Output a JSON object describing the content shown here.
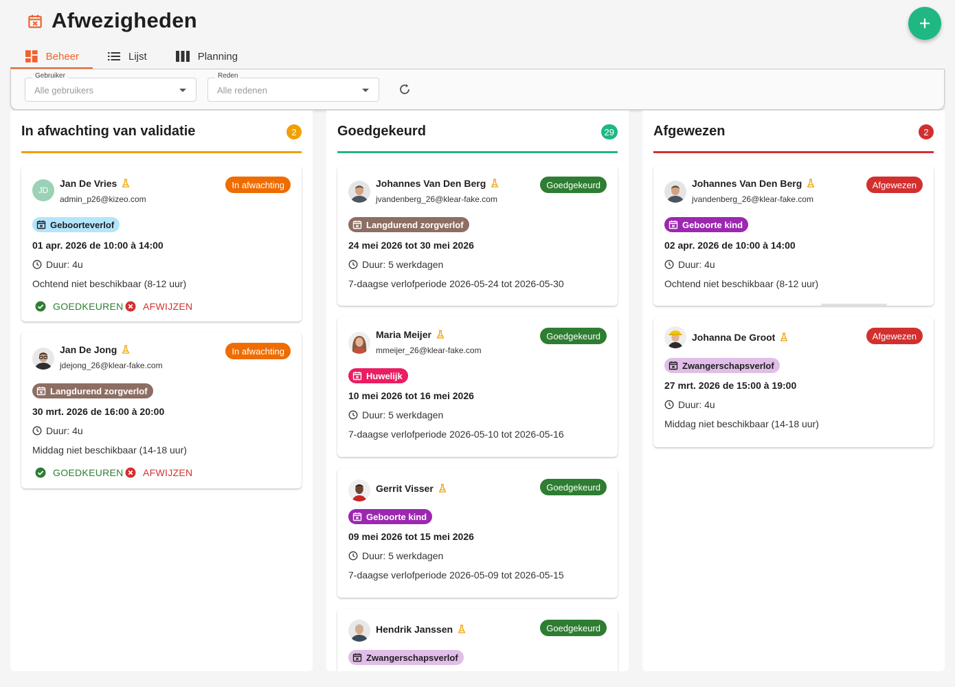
{
  "page": {
    "title": "Afwezigheden",
    "accent": "#f0622d",
    "fab_icon": "plus-icon"
  },
  "tabs": [
    {
      "label": "Beheer",
      "icon": "dashboard-icon",
      "active": true
    },
    {
      "label": "Lijst",
      "icon": "list-icon",
      "active": false
    },
    {
      "label": "Planning",
      "icon": "columns-icon",
      "active": false
    }
  ],
  "filters": {
    "user": {
      "label": "Gebruiker",
      "value": "Alle gebruikers"
    },
    "reason": {
      "label": "Reden",
      "value": "Alle redenen"
    }
  },
  "columns": [
    {
      "title": "In afwachting van validatie",
      "count": "2",
      "color": "#f0a000",
      "cards": [
        {
          "name": "Jan De Vries",
          "initials": "JD",
          "email": "admin_p26@kizeo.com",
          "status": "In afwachting",
          "reason": "Geboorteverlof",
          "date": "01 apr. 2026 de 10:00 à 14:00",
          "duration": "Duur: 4u",
          "description": "Ochtend niet beschikbaar (8-12 uur)",
          "approve": "GOEDKEUREN",
          "reject": "AFWIJZEN"
        },
        {
          "name": "Jan De Jong",
          "email": "jdejong_26@klear-fake.com",
          "status": "In afwachting",
          "reason": "Langdurend zorgverlof",
          "date": "30 mrt. 2026 de 16:00 à 20:00",
          "duration": "Duur: 4u",
          "description": "Middag niet beschikbaar (14-18 uur)",
          "approve": "GOEDKEUREN",
          "reject": "AFWIJZEN"
        }
      ]
    },
    {
      "title": "Goedgekeurd",
      "count": "29",
      "color": "#1fb883",
      "cards": [
        {
          "name": "Johannes Van Den Berg",
          "email": "jvandenberg_26@klear-fake.com",
          "status": "Goedgekeurd",
          "reason": "Langdurend zorgverlof",
          "date": "24 mei 2026 tot 30 mei 2026",
          "duration": "Duur: 5 werkdagen",
          "description": "7-daagse verlofperiode 2026-05-24 tot 2026-05-30"
        },
        {
          "name": "Maria Meijer",
          "email": "mmeijer_26@klear-fake.com",
          "status": "Goedgekeurd",
          "reason": "Huwelijk",
          "date": "10 mei 2026 tot 16 mei 2026",
          "duration": "Duur: 5 werkdagen",
          "description": "7-daagse verlofperiode 2026-05-10 tot 2026-05-16"
        },
        {
          "name": "Gerrit Visser",
          "status": "Goedgekeurd",
          "reason": "Geboorte kind",
          "date": "09 mei 2026 tot 15 mei 2026",
          "duration": "Duur: 5 werkdagen",
          "description": "7-daagse verlofperiode 2026-05-09 tot 2026-05-15"
        },
        {
          "name": "Hendrik Janssen",
          "status": "Goedgekeurd",
          "reason": "Zwangerschapsverlof"
        }
      ]
    },
    {
      "title": "Afgewezen",
      "count": "2",
      "color": "#d32f2f",
      "cards": [
        {
          "name": "Johannes Van Den Berg",
          "email": "jvandenberg_26@klear-fake.com",
          "status": "Afgewezen",
          "reason": "Geboorte kind",
          "date": "02 apr. 2026 de 10:00 à 14:00",
          "duration": "Duur: 4u",
          "description": "Ochtend niet beschikbaar (8-12 uur)"
        },
        {
          "name": "Johanna De Groot",
          "status": "Afgewezen",
          "reason": "Zwangerschapsverlof",
          "date": "27 mrt. 2026 de 15:00 à 19:00",
          "duration": "Duur: 4u",
          "description": "Middag niet beschikbaar (14-18 uur)"
        }
      ]
    }
  ]
}
